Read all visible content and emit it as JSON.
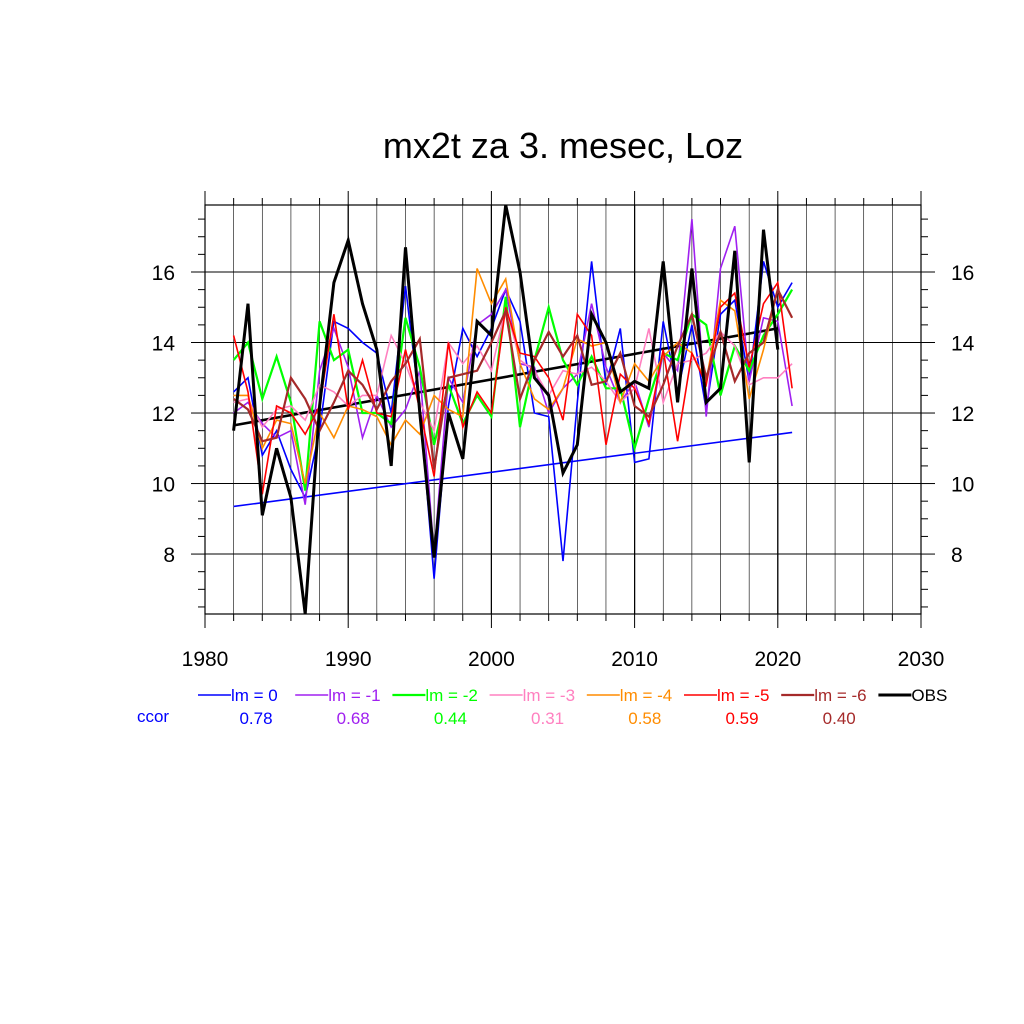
{
  "chart_data": {
    "type": "line",
    "title": "mx2t za 3. mesec, Loz",
    "xlabel": "",
    "ylabel": "",
    "xlim": [
      1980,
      2030
    ],
    "ylim": [
      6.3,
      17.9
    ],
    "xticks": [
      1980,
      1990,
      2000,
      2010,
      2020,
      2030
    ],
    "yticks": [
      8,
      10,
      12,
      14,
      16
    ],
    "grid": true,
    "ccor_label": "ccor",
    "x": [
      1982,
      1983,
      1984,
      1985,
      1986,
      1987,
      1988,
      1989,
      1990,
      1991,
      1992,
      1993,
      1994,
      1995,
      1996,
      1997,
      1998,
      1999,
      2000,
      2001,
      2002,
      2003,
      2004,
      2005,
      2006,
      2007,
      2008,
      2009,
      2010,
      2011,
      2012,
      2013,
      2014,
      2015,
      2016,
      2017,
      2018,
      2019,
      2020,
      2021
    ],
    "series": [
      {
        "name": "lm = 0",
        "ccor": "0.78",
        "color": "#0000ff",
        "width": 1.6,
        "values": [
          12.6,
          13.0,
          10.8,
          11.5,
          10.4,
          9.6,
          11.5,
          14.6,
          14.4,
          14.0,
          13.7,
          12.0,
          15.6,
          12.2,
          7.3,
          12.2,
          14.4,
          13.6,
          14.4,
          15.5,
          14.6,
          12.0,
          11.9,
          7.8,
          12.3,
          16.3,
          12.8,
          14.4,
          10.6,
          10.7,
          14.6,
          12.6,
          14.5,
          12.1,
          14.8,
          15.2,
          12.9,
          16.3,
          15.0,
          15.7
        ]
      },
      {
        "name": "lm = -1",
        "ccor": "0.68",
        "color": "#a020f0",
        "width": 1.6,
        "values": [
          12.0,
          12.3,
          11.7,
          11.3,
          11.5,
          9.4,
          13.2,
          14.4,
          13.3,
          11.3,
          12.5,
          11.6,
          12.1,
          13.2,
          8.0,
          13.0,
          12.3,
          14.5,
          14.8,
          15.5,
          13.4,
          13.3,
          12.0,
          12.7,
          13.1,
          15.1,
          13.3,
          12.3,
          12.9,
          11.6,
          13.7,
          13.2,
          17.5,
          11.9,
          16.1,
          17.3,
          12.9,
          14.7,
          14.6,
          12.2
        ]
      },
      {
        "name": "lm = -2",
        "ccor": "0.44",
        "color": "#00ff00",
        "width": 2.2,
        "values": [
          13.5,
          14.0,
          12.4,
          13.6,
          12.3,
          9.8,
          14.6,
          13.5,
          13.8,
          12.0,
          12.0,
          11.7,
          14.7,
          13.3,
          11.1,
          12.8,
          11.7,
          12.5,
          11.9,
          15.3,
          11.6,
          13.5,
          15.0,
          13.5,
          12.8,
          13.6,
          12.7,
          12.7,
          11.0,
          12.4,
          13.7,
          13.5,
          14.8,
          14.5,
          12.5,
          13.9,
          13.2,
          14.2,
          14.8,
          15.5
        ]
      },
      {
        "name": "lm = -3",
        "ccor": "0.31",
        "color": "#ff80c0",
        "width": 1.6,
        "values": [
          12.3,
          12.4,
          11.6,
          12.1,
          12.2,
          11.8,
          12.8,
          12.6,
          12.2,
          12.5,
          12.5,
          14.2,
          13.4,
          12.3,
          11.5,
          14.0,
          13.4,
          13.9,
          13.2,
          15.0,
          13.5,
          13.2,
          12.5,
          13.2,
          13.1,
          13.3,
          12.9,
          12.3,
          12.7,
          14.4,
          12.3,
          13.4,
          13.5,
          13.7,
          14.3,
          13.9,
          12.8,
          13.0,
          13.0,
          13.4
        ]
      },
      {
        "name": "lm = -4",
        "ccor": "0.58",
        "color": "#ff8c00",
        "width": 1.6,
        "values": [
          12.5,
          12.5,
          11.0,
          11.8,
          11.7,
          10.0,
          12.0,
          11.3,
          12.2,
          12.1,
          11.9,
          11.1,
          11.8,
          11.4,
          12.5,
          12.1,
          11.9,
          16.1,
          15.1,
          15.8,
          13.4,
          12.4,
          12.1,
          12.7,
          14.1,
          13.9,
          14.0,
          12.3,
          13.4,
          12.9,
          13.6,
          14.0,
          13.7,
          12.9,
          15.2,
          14.9,
          12.4,
          13.8,
          15.5,
          14.7
        ]
      },
      {
        "name": "lm = -5",
        "ccor": "0.59",
        "color": "#ff0000",
        "width": 1.6,
        "values": [
          14.2,
          12.6,
          9.7,
          12.2,
          12.0,
          11.4,
          12.2,
          14.8,
          12.1,
          13.5,
          12.0,
          11.9,
          13.8,
          12.1,
          10.2,
          14.0,
          11.6,
          12.6,
          12.0,
          15.0,
          13.7,
          13.6,
          13.0,
          11.8,
          14.8,
          14.2,
          11.1,
          13.1,
          12.7,
          11.7,
          13.8,
          11.2,
          13.7,
          12.8,
          15.0,
          15.4,
          13.3,
          15.1,
          15.7,
          12.7
        ]
      },
      {
        "name": "lm = -6",
        "ccor": "0.40",
        "color": "#a52a2a",
        "width": 2.2,
        "values": [
          12.4,
          12.1,
          11.2,
          11.3,
          13.0,
          12.4,
          11.5,
          12.3,
          13.2,
          12.8,
          12.1,
          12.9,
          13.4,
          14.1,
          10.4,
          13.0,
          13.1,
          13.2,
          14.0,
          14.9,
          12.4,
          13.5,
          14.3,
          13.6,
          14.2,
          12.8,
          12.9,
          13.7,
          12.2,
          11.9,
          12.8,
          13.9,
          14.8,
          13.0,
          14.3,
          12.9,
          13.7,
          14.0,
          15.5,
          14.7
        ]
      },
      {
        "name": "OBS",
        "ccor": "",
        "color": "#000000",
        "width": 3,
        "values": [
          11.5,
          15.1,
          9.1,
          11.0,
          9.6,
          6.3,
          12.2,
          15.7,
          16.9,
          15.1,
          13.8,
          10.5,
          16.7,
          12.0,
          7.9,
          12.0,
          10.7,
          14.6,
          14.2,
          17.9,
          16.0,
          13.0,
          12.5,
          10.3,
          11.1,
          14.8,
          14.0,
          12.6,
          12.9,
          12.7,
          16.3,
          12.3,
          16.1,
          12.3,
          12.7,
          16.6,
          10.6,
          17.2,
          13.8,
          null
        ]
      }
    ],
    "trendlines": [
      {
        "series": "lm = 0",
        "color": "#0000ff",
        "width": 1.6,
        "x": [
          1982,
          2021
        ],
        "y": [
          9.35,
          11.45
        ]
      },
      {
        "series": "OBS",
        "color": "#000000",
        "width": 2.6,
        "x": [
          1982,
          2020
        ],
        "y": [
          11.65,
          14.4
        ]
      }
    ]
  }
}
